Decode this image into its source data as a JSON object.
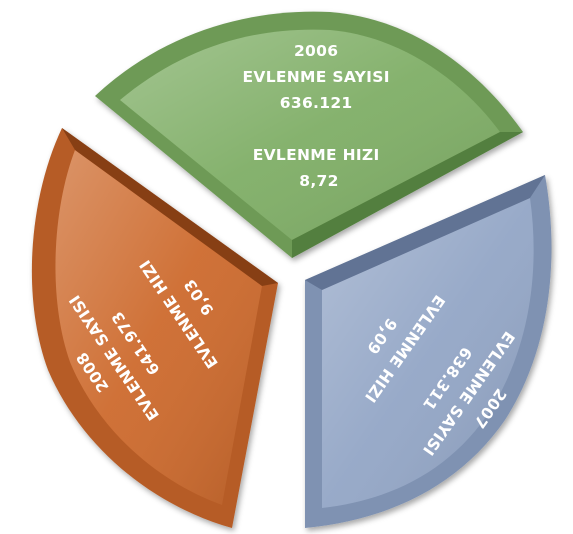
{
  "chart_data": {
    "type": "pie",
    "exploded": true,
    "style": "3d-beveled",
    "segments": [
      {
        "year": "2006",
        "count_label": "EVLENME SAYISI",
        "count": "636.121",
        "rate_label": "EVLENME HIZI",
        "rate": "8,72",
        "color": "#7fae66"
      },
      {
        "year": "2007",
        "count_label": "EVLENME SAYISI",
        "count": "638.311",
        "rate_label": "EVLENME HIZI",
        "rate": "9,09",
        "color": "#93a6c6"
      },
      {
        "year": "2008",
        "count_label": "EVLENME SAYISI",
        "count": "641.973",
        "rate_label": "EVLENME HIZI",
        "rate": "9,03",
        "color": "#cd6a2d"
      }
    ]
  }
}
